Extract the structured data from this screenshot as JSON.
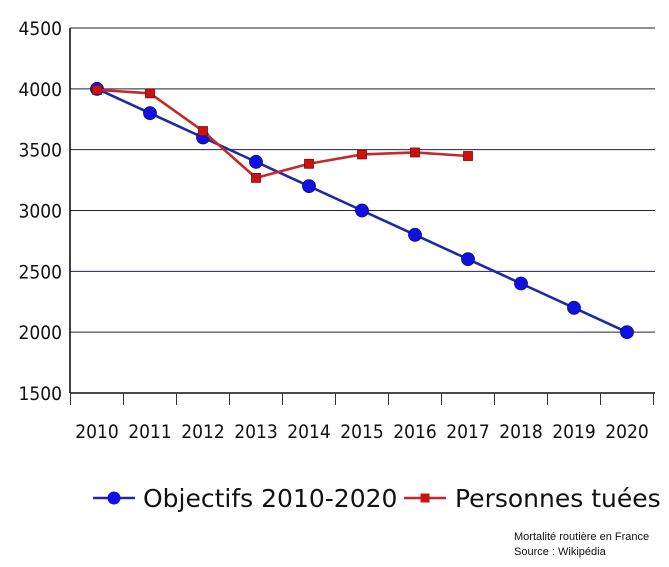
{
  "chart_data": {
    "type": "line",
    "categories": [
      "2010",
      "2011",
      "2012",
      "2013",
      "2014",
      "2015",
      "2016",
      "2017",
      "2018",
      "2019",
      "2020"
    ],
    "ylim": [
      1500,
      4500
    ],
    "yticks": [
      "1500",
      "2000",
      "2500",
      "3000",
      "3500",
      "4000",
      "4500"
    ],
    "grid": true,
    "legend_position": "bottom",
    "series": [
      {
        "name": "Objectifs 2010-2020",
        "color": "#1d2aa3",
        "marker": "circle",
        "marker_color": "#1010e0",
        "points": [
          {
            "x": 2010.0,
            "y": 4000
          },
          {
            "x": 2011.0,
            "y": 3800
          },
          {
            "x": 2012.0,
            "y": 3600
          },
          {
            "x": 2013.0,
            "y": 3400
          },
          {
            "x": 2014.0,
            "y": 3200
          },
          {
            "x": 2015.0,
            "y": 3000
          },
          {
            "x": 2016.0,
            "y": 2800
          },
          {
            "x": 2017.0,
            "y": 2600
          },
          {
            "x": 2018.0,
            "y": 2400
          },
          {
            "x": 2019.0,
            "y": 2200
          },
          {
            "x": 2020.0,
            "y": 2000
          }
        ]
      },
      {
        "name": "Personnes tuées",
        "color": "#c42a2a",
        "marker": "square",
        "marker_color": "#cc1111",
        "points": [
          {
            "x": 2010.0,
            "y": 3992
          },
          {
            "x": 2011.0,
            "y": 3963
          },
          {
            "x": 2012.0,
            "y": 3653
          },
          {
            "x": 2013.0,
            "y": 3268
          },
          {
            "x": 2014.0,
            "y": 3384
          },
          {
            "x": 2015.0,
            "y": 3461
          },
          {
            "x": 2016.0,
            "y": 3477
          },
          {
            "x": 2017.0,
            "y": 3448
          }
        ]
      }
    ]
  },
  "credit": {
    "line1": "Mortalité routière en France",
    "line2": "Source : Wikipédia"
  }
}
